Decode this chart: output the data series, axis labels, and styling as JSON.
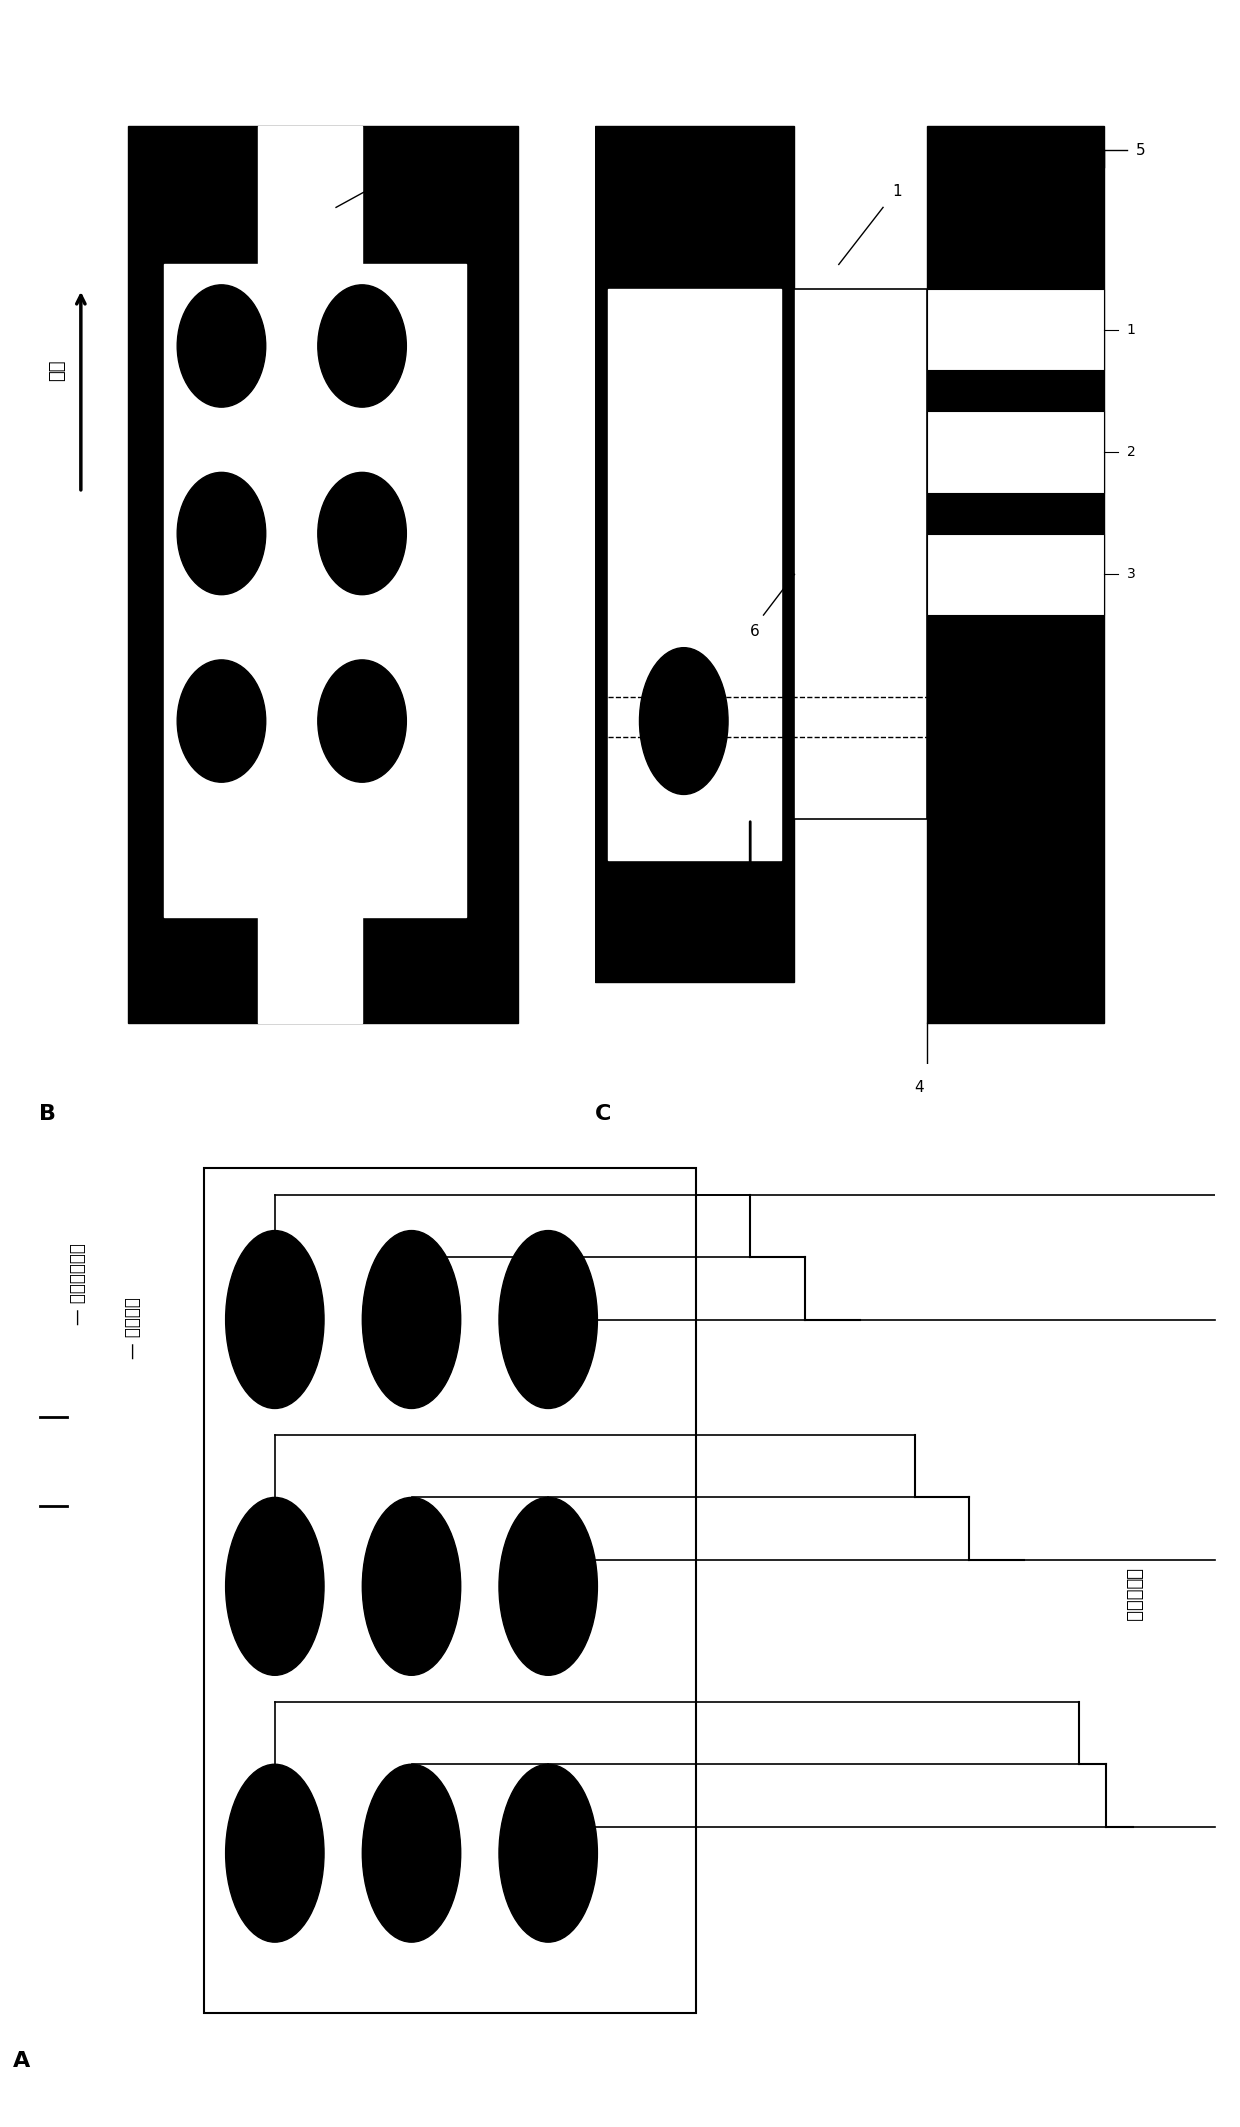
{
  "bg_color": "#ffffff",
  "panel_A_label": "A",
  "panel_B_label": "B",
  "panel_C_label": "C",
  "legend_line1": "— 分选捕获电极",
  "legend_line2": "— 检测电极",
  "electrode_top_view": "电极俧视图",
  "flow_direction": "流向",
  "label_1": "1",
  "label_2": "2",
  "label_3": "3",
  "label_4": "4",
  "label_5": "5",
  "label_6": "6"
}
